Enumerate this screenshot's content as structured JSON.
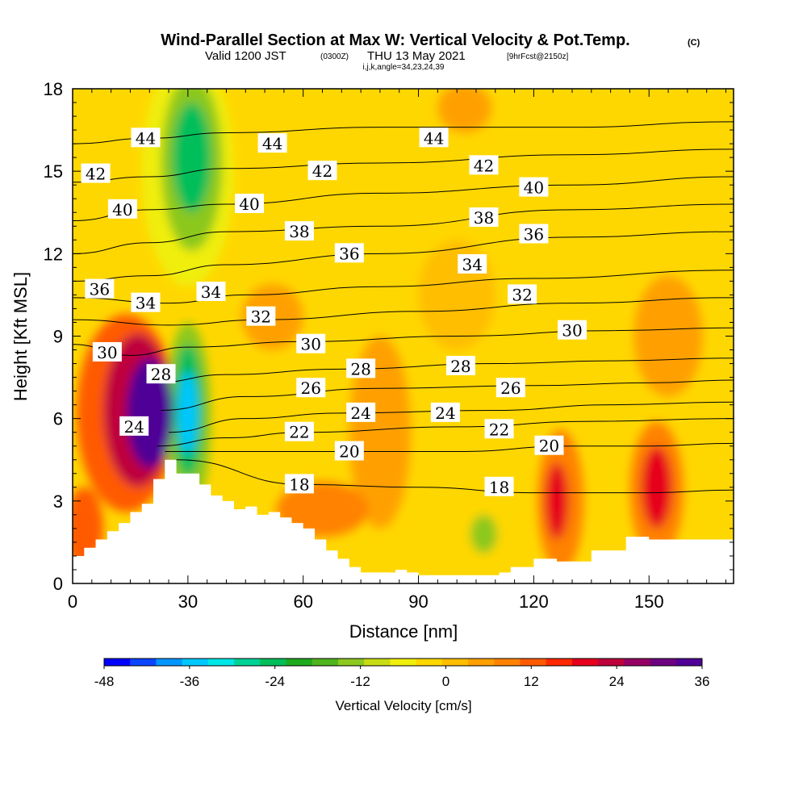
{
  "title": {
    "main": "Wind-Parallel Section at Max W: Vertical Velocity & Pot.Temp.",
    "main_suffix": "(C)",
    "valid_prefix": "Valid 1200 JST",
    "valid_utc": "(0300Z)",
    "valid_date": "THU 13 May 2021",
    "forecast": "[9hrFcst@2150z]",
    "indices": "i,j,k,angle=34,23,24,39"
  },
  "chart_data": {
    "type": "heatmap",
    "xlabel": "Distance [nm]",
    "ylabel": "Height [Kft MSL]",
    "xlim": [
      0,
      172
    ],
    "ylim": [
      0,
      18
    ],
    "x_ticks": [
      0,
      30,
      60,
      90,
      120,
      150
    ],
    "y_ticks": [
      0,
      3,
      6,
      9,
      12,
      15,
      18
    ],
    "colorbar": {
      "label": "Vertical Velocity [cm/s]",
      "tick_labels": [
        "-48",
        "-36",
        "-24",
        "-12",
        "0",
        "12",
        "24",
        "36"
      ],
      "tick_values": [
        -48,
        -36,
        -24,
        -12,
        0,
        12,
        24,
        36
      ],
      "range": [
        -48,
        36
      ],
      "colors": [
        "#0000ff",
        "#0a46ff",
        "#0096ff",
        "#00c8ff",
        "#00e6e6",
        "#00d296",
        "#00be5a",
        "#1eaa1e",
        "#50b41e",
        "#8cc81e",
        "#c8dc14",
        "#f0ee0a",
        "#ffd700",
        "#ffbe00",
        "#ffa000",
        "#ff8200",
        "#ff5a00",
        "#ff2800",
        "#e6001e",
        "#be003c",
        "#960064",
        "#6e0082",
        "#500096"
      ]
    },
    "terrain": {
      "distance_nm": [
        0,
        3,
        3,
        6,
        6,
        9,
        9,
        12,
        12,
        15,
        15,
        18,
        18,
        21,
        21,
        24,
        24,
        27,
        27,
        33,
        33,
        36,
        36,
        39,
        39,
        42,
        42,
        45,
        45,
        48,
        48,
        51,
        51,
        54,
        54,
        57,
        57,
        60,
        60,
        63,
        63,
        66,
        66,
        69,
        69,
        72,
        72,
        75,
        75,
        78,
        78,
        81,
        81,
        84,
        84,
        87,
        87,
        90,
        90,
        111,
        111,
        114,
        114,
        120,
        120,
        126,
        126,
        135,
        135,
        144,
        144,
        150,
        150,
        160,
        160,
        172
      ],
      "height_kft": [
        1.0,
        1.0,
        1.3,
        1.3,
        1.6,
        1.6,
        1.9,
        1.9,
        2.2,
        2.2,
        2.6,
        2.6,
        2.9,
        2.9,
        3.8,
        3.8,
        4.5,
        4.5,
        4.0,
        4.0,
        3.6,
        3.6,
        3.2,
        3.2,
        3.0,
        3.0,
        2.7,
        2.7,
        2.8,
        2.8,
        2.5,
        2.5,
        2.6,
        2.6,
        2.4,
        2.4,
        2.2,
        2.2,
        2.0,
        2.0,
        1.6,
        1.6,
        1.2,
        1.2,
        0.9,
        0.9,
        0.6,
        0.6,
        0.4,
        0.4,
        0.4,
        0.4,
        0.4,
        0.4,
        0.5,
        0.5,
        0.4,
        0.4,
        0.3,
        0.3,
        0.4,
        0.4,
        0.6,
        0.6,
        0.9,
        0.9,
        0.8,
        0.8,
        1.2,
        1.2,
        1.7,
        1.7,
        1.6,
        1.6,
        1.6,
        1.6
      ]
    },
    "vertical_velocity_cells": [
      {
        "x": 20,
        "y": 6.2,
        "rx": 6,
        "ry": 2.0,
        "value": 36
      },
      {
        "x": 17,
        "y": 6.3,
        "rx": 9,
        "ry": 2.8,
        "value": 24
      },
      {
        "x": 14,
        "y": 6.2,
        "rx": 13,
        "ry": 3.6,
        "value": 12
      },
      {
        "x": 30,
        "y": 6.2,
        "rx": 2.5,
        "ry": 1.5,
        "value": -36
      },
      {
        "x": 30,
        "y": 6.3,
        "rx": 4,
        "ry": 2.4,
        "value": -24
      },
      {
        "x": 30,
        "y": 6.0,
        "rx": 6,
        "ry": 3.5,
        "value": -12
      },
      {
        "x": 31,
        "y": 15.5,
        "rx": 5,
        "ry": 2.0,
        "value": -24
      },
      {
        "x": 31,
        "y": 15.3,
        "rx": 8,
        "ry": 3.2,
        "value": -12
      },
      {
        "x": 30,
        "y": 15.0,
        "rx": 12,
        "ry": 4.2,
        "value": -6
      },
      {
        "x": 107,
        "y": 1.8,
        "rx": 3.5,
        "ry": 0.7,
        "value": -12
      },
      {
        "x": 107,
        "y": 1.8,
        "rx": 6,
        "ry": 1.2,
        "value": -4
      },
      {
        "x": 126,
        "y": 3.0,
        "rx": 3,
        "ry": 1.4,
        "value": 20
      },
      {
        "x": 127,
        "y": 3.0,
        "rx": 6,
        "ry": 2.6,
        "value": 10
      },
      {
        "x": 152,
        "y": 3.5,
        "rx": 4,
        "ry": 1.5,
        "value": 18
      },
      {
        "x": 152,
        "y": 3.4,
        "rx": 7,
        "ry": 2.5,
        "value": 8
      },
      {
        "x": 155,
        "y": 9.0,
        "rx": 9,
        "ry": 2.2,
        "value": 6
      },
      {
        "x": 3,
        "y": 2.0,
        "rx": 5,
        "ry": 1.5,
        "value": 14
      },
      {
        "x": 65,
        "y": 2.7,
        "rx": 12,
        "ry": 1.0,
        "value": 8
      },
      {
        "x": 80,
        "y": 5.5,
        "rx": 8,
        "ry": 3.5,
        "value": 4
      },
      {
        "x": 100,
        "y": 10.5,
        "rx": 10,
        "ry": 2.0,
        "value": 3
      },
      {
        "x": 102,
        "y": 17.3,
        "rx": 7,
        "ry": 0.9,
        "value": 4
      },
      {
        "x": 52,
        "y": 9.7,
        "rx": 8,
        "ry": 1.2,
        "value": 4
      },
      {
        "x": 160,
        "y": 16.5,
        "rx": 6,
        "ry": 1.6,
        "value": -3
      }
    ],
    "theta_contours": [
      {
        "value": 18,
        "pts": [
          [
            27,
            4.5
          ],
          [
            60,
            3.6
          ],
          [
            90,
            3.5
          ],
          [
            120,
            3.3
          ],
          [
            150,
            3.3
          ],
          [
            172,
            3.4
          ]
        ]
      },
      {
        "value": 20,
        "pts": [
          [
            24,
            4.8
          ],
          [
            45,
            4.8
          ],
          [
            70,
            4.8
          ],
          [
            100,
            4.8
          ],
          [
            130,
            5.0
          ],
          [
            150,
            5.0
          ],
          [
            172,
            5.1
          ]
        ]
      },
      {
        "value": 22,
        "pts": [
          [
            22,
            5.0
          ],
          [
            40,
            5.3
          ],
          [
            60,
            5.5
          ],
          [
            100,
            5.7
          ],
          [
            135,
            5.9
          ],
          [
            172,
            6.0
          ]
        ]
      },
      {
        "value": 24,
        "pts": [
          [
            25,
            5.5
          ],
          [
            45,
            6.0
          ],
          [
            70,
            6.2
          ],
          [
            110,
            6.3
          ],
          [
            140,
            6.5
          ],
          [
            172,
            6.6
          ]
        ]
      },
      {
        "value": 26,
        "pts": [
          [
            23,
            6.3
          ],
          [
            45,
            6.8
          ],
          [
            80,
            7.1
          ],
          [
            120,
            7.2
          ],
          [
            150,
            7.3
          ],
          [
            172,
            7.4
          ]
        ]
      },
      {
        "value": 28,
        "pts": [
          [
            21,
            7.3
          ],
          [
            40,
            7.6
          ],
          [
            70,
            7.8
          ],
          [
            110,
            8.0
          ],
          [
            140,
            8.1
          ],
          [
            172,
            8.2
          ]
        ]
      },
      {
        "value": 30,
        "pts": [
          [
            0,
            8.7
          ],
          [
            15,
            8.3
          ],
          [
            30,
            8.6
          ],
          [
            60,
            8.8
          ],
          [
            100,
            9.0
          ],
          [
            140,
            9.2
          ],
          [
            172,
            9.3
          ]
        ]
      },
      {
        "value": 32,
        "pts": [
          [
            0,
            9.6
          ],
          [
            25,
            9.4
          ],
          [
            50,
            9.6
          ],
          [
            90,
            9.9
          ],
          [
            130,
            10.2
          ],
          [
            172,
            10.4
          ]
        ]
      },
      {
        "value": 34,
        "pts": [
          [
            0,
            10.4
          ],
          [
            25,
            10.2
          ],
          [
            45,
            10.5
          ],
          [
            80,
            10.8
          ],
          [
            120,
            11.1
          ],
          [
            172,
            11.4
          ]
        ]
      },
      {
        "value": 36,
        "pts": [
          [
            0,
            11.0
          ],
          [
            20,
            11.2
          ],
          [
            40,
            11.6
          ],
          [
            80,
            12.0
          ],
          [
            130,
            12.6
          ],
          [
            172,
            12.8
          ]
        ]
      },
      {
        "value": 38,
        "pts": [
          [
            0,
            12.0
          ],
          [
            20,
            12.4
          ],
          [
            40,
            12.8
          ],
          [
            80,
            13.0
          ],
          [
            130,
            13.6
          ],
          [
            172,
            13.8
          ]
        ]
      },
      {
        "value": 40,
        "pts": [
          [
            0,
            13.2
          ],
          [
            20,
            13.6
          ],
          [
            40,
            13.8
          ],
          [
            80,
            14.2
          ],
          [
            130,
            14.5
          ],
          [
            172,
            14.8
          ]
        ]
      },
      {
        "value": 42,
        "pts": [
          [
            0,
            14.6
          ],
          [
            20,
            14.8
          ],
          [
            40,
            15.1
          ],
          [
            80,
            15.3
          ],
          [
            130,
            15.6
          ],
          [
            172,
            15.8
          ]
        ]
      },
      {
        "value": 44,
        "pts": [
          [
            0,
            16.0
          ],
          [
            20,
            16.2
          ],
          [
            40,
            16.4
          ],
          [
            80,
            16.6
          ],
          [
            130,
            16.6
          ],
          [
            172,
            16.8
          ]
        ]
      }
    ],
    "contour_labels": [
      {
        "text": "44",
        "x": 19,
        "y": 16.2
      },
      {
        "text": "44",
        "x": 52,
        "y": 16.0
      },
      {
        "text": "44",
        "x": 94,
        "y": 16.2
      },
      {
        "text": "42",
        "x": 6,
        "y": 14.9
      },
      {
        "text": "42",
        "x": 65,
        "y": 15.0
      },
      {
        "text": "42",
        "x": 107,
        "y": 15.2
      },
      {
        "text": "40",
        "x": 13,
        "y": 13.6
      },
      {
        "text": "40",
        "x": 46,
        "y": 13.8
      },
      {
        "text": "40",
        "x": 120,
        "y": 14.4
      },
      {
        "text": "38",
        "x": 59,
        "y": 12.8
      },
      {
        "text": "38",
        "x": 107,
        "y": 13.3
      },
      {
        "text": "38",
        "x": 0,
        "y": 0,
        "hidden": true
      },
      {
        "text": "36",
        "x": 7,
        "y": 10.7
      },
      {
        "text": "36",
        "x": 72,
        "y": 12.0
      },
      {
        "text": "36",
        "x": 120,
        "y": 12.7
      },
      {
        "text": "34",
        "x": 19,
        "y": 10.2
      },
      {
        "text": "34",
        "x": 36,
        "y": 10.6
      },
      {
        "text": "34",
        "x": 104,
        "y": 11.6
      },
      {
        "text": "32",
        "x": 49,
        "y": 9.7
      },
      {
        "text": "32",
        "x": 117,
        "y": 10.5
      },
      {
        "text": "30",
        "x": 9,
        "y": 8.4
      },
      {
        "text": "30",
        "x": 62,
        "y": 8.7
      },
      {
        "text": "30",
        "x": 130,
        "y": 9.2
      },
      {
        "text": "28",
        "x": 23,
        "y": 7.6
      },
      {
        "text": "28",
        "x": 75,
        "y": 7.8
      },
      {
        "text": "28",
        "x": 101,
        "y": 7.9
      },
      {
        "text": "26",
        "x": 62,
        "y": 7.1
      },
      {
        "text": "26",
        "x": 114,
        "y": 7.1
      },
      {
        "text": "24",
        "x": 16,
        "y": 5.7
      },
      {
        "text": "24",
        "x": 75,
        "y": 6.2
      },
      {
        "text": "24",
        "x": 97,
        "y": 6.2
      },
      {
        "text": "22",
        "x": 59,
        "y": 5.5
      },
      {
        "text": "22",
        "x": 111,
        "y": 5.6
      },
      {
        "text": "20",
        "x": 72,
        "y": 4.8
      },
      {
        "text": "20",
        "x": 124,
        "y": 5.0
      },
      {
        "text": "18",
        "x": 59,
        "y": 3.6
      },
      {
        "text": "18",
        "x": 111,
        "y": 3.5
      }
    ]
  }
}
